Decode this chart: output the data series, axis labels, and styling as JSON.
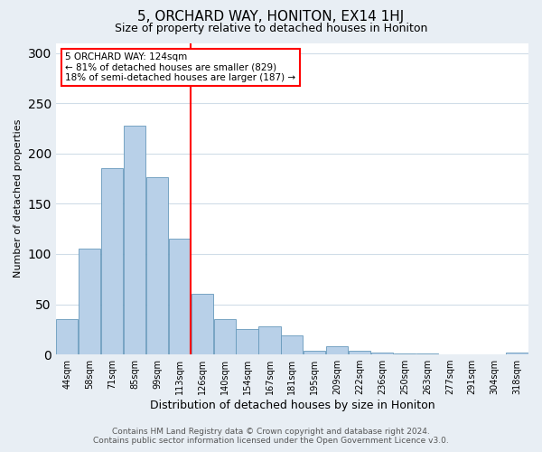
{
  "title": "5, ORCHARD WAY, HONITON, EX14 1HJ",
  "subtitle": "Size of property relative to detached houses in Honiton",
  "xlabel": "Distribution of detached houses by size in Honiton",
  "ylabel": "Number of detached properties",
  "bar_labels": [
    "44sqm",
    "58sqm",
    "71sqm",
    "85sqm",
    "99sqm",
    "113sqm",
    "126sqm",
    "140sqm",
    "154sqm",
    "167sqm",
    "181sqm",
    "195sqm",
    "209sqm",
    "222sqm",
    "236sqm",
    "250sqm",
    "263sqm",
    "277sqm",
    "291sqm",
    "304sqm",
    "318sqm"
  ],
  "bar_heights": [
    35,
    105,
    185,
    228,
    176,
    115,
    60,
    35,
    25,
    28,
    19,
    4,
    8,
    4,
    2,
    1,
    1,
    0,
    0,
    0,
    2
  ],
  "bar_color": "#b8d0e8",
  "bar_edge_color": "#6699bb",
  "vline_x_index": 6,
  "vline_color": "red",
  "annotation_text": "5 ORCHARD WAY: 124sqm\n← 81% of detached houses are smaller (829)\n18% of semi-detached houses are larger (187) →",
  "annotation_box_color": "white",
  "annotation_box_edge_color": "red",
  "ylim": [
    0,
    310
  ],
  "yticks": [
    0,
    50,
    100,
    150,
    200,
    250,
    300
  ],
  "footer_line1": "Contains HM Land Registry data © Crown copyright and database right 2024.",
  "footer_line2": "Contains public sector information licensed under the Open Government Licence v3.0.",
  "background_color": "#e8eef4",
  "plot_background_color": "white",
  "title_fontsize": 11,
  "subtitle_fontsize": 9,
  "xlabel_fontsize": 9,
  "ylabel_fontsize": 8,
  "footer_fontsize": 6.5,
  "tick_fontsize": 7
}
